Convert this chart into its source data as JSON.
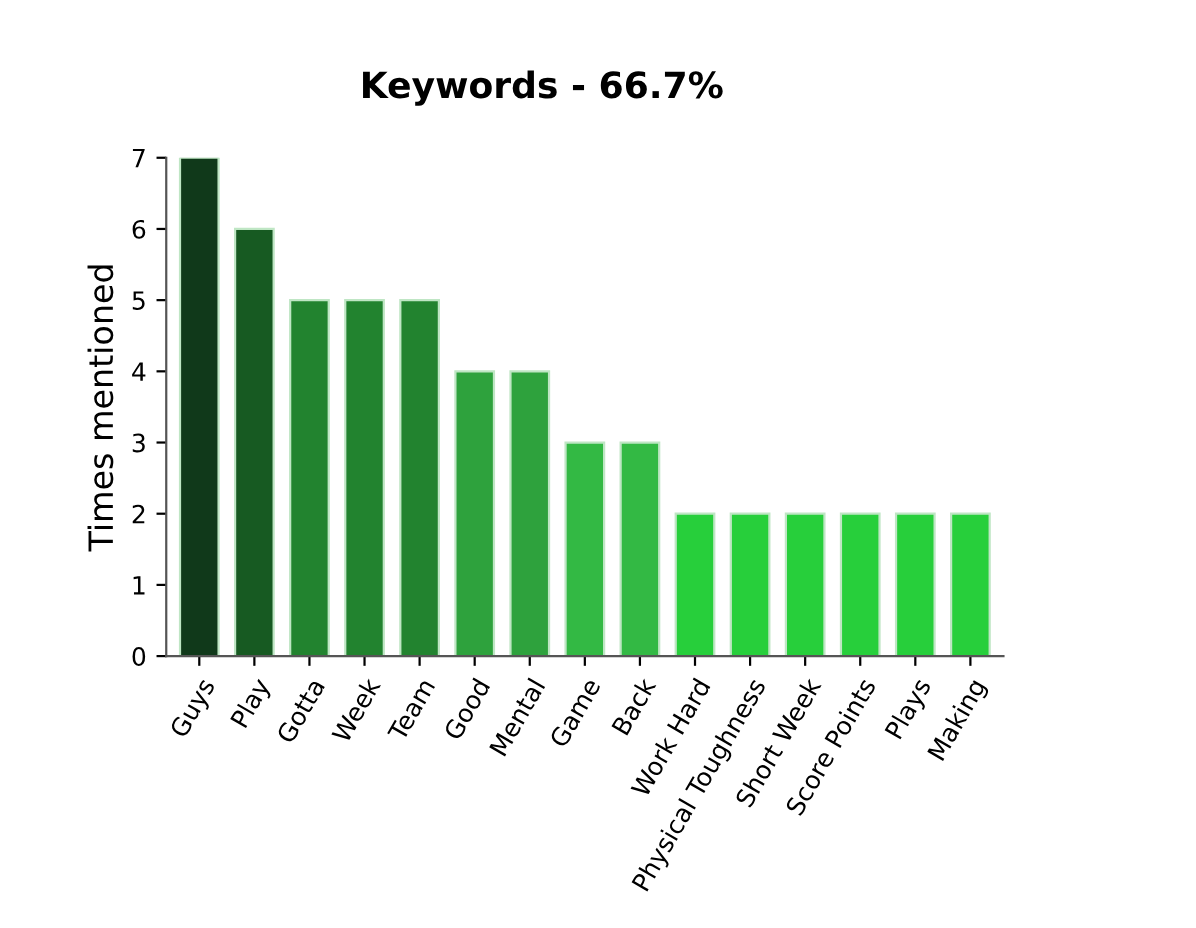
{
  "chart_data": {
    "type": "bar",
    "title": "Keywords - 66.7%",
    "ylabel": "Times mentioned",
    "categories": [
      "Guys",
      "Play",
      "Gotta",
      "Week",
      "Team",
      "Good",
      "Mental",
      "Game",
      "Back",
      "Work Hard",
      "Physical Toughness",
      "Short Week",
      "Score Points",
      "Plays",
      "Making"
    ],
    "values": [
      7,
      6,
      5,
      5,
      5,
      4,
      4,
      3,
      3,
      2,
      2,
      2,
      2,
      2,
      2
    ],
    "colors": [
      "#10391a",
      "#175a22",
      "#22832f",
      "#22832f",
      "#22832f",
      "#2ea23d",
      "#2ea23d",
      "#33b944",
      "#33b944",
      "#27cf3b",
      "#27cf3b",
      "#27cf3b",
      "#27cf3b",
      "#27cf3b",
      "#27cf3b"
    ],
    "ylim": [
      0,
      7
    ],
    "yticks": [
      0,
      1,
      2,
      3,
      4,
      5,
      6,
      7
    ],
    "grid": false,
    "legend": false
  }
}
